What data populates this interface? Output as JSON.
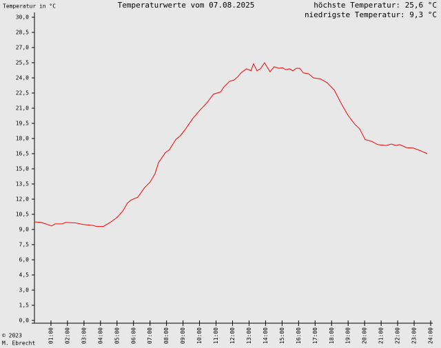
{
  "chart_data": {
    "type": "line",
    "title": "Temperaturwerte vom 07.08.2025",
    "y_label": "Temperatur in °C",
    "annotations": [
      "höchste Temperatur: 25,6 °C",
      "niedrigste Temperatur: 9,3 °C"
    ],
    "footer": [
      "© 2023",
      "M. Ebrecht"
    ],
    "x": [
      0,
      0.42,
      1.04,
      1.25,
      1.67,
      1.88,
      2.5,
      2.92,
      3.55,
      3.76,
      4.17,
      4.59,
      5.01,
      5.34,
      5.63,
      5.84,
      6.26,
      6.68,
      7.01,
      7.3,
      7.51,
      7.93,
      8.18,
      8.56,
      8.85,
      9.18,
      9.6,
      10.02,
      10.43,
      10.85,
      11.27,
      11.48,
      11.81,
      12.1,
      12.31,
      12.52,
      12.85,
      13.11,
      13.27,
      13.48,
      13.69,
      13.94,
      14.27,
      14.52,
      14.82,
      15.03,
      15.23,
      15.44,
      15.65,
      15.86,
      16.07,
      16.28,
      16.61,
      16.9,
      17.32,
      17.74,
      18.16,
      18.57,
      18.99,
      19.41,
      19.7,
      20.03,
      20.45,
      20.79,
      21.29,
      21.62,
      21.91,
      22.12,
      22.54,
      22.95,
      23.37,
      23.79
    ],
    "series": [
      {
        "color": "#ff0000",
        "values": [
          9.75,
          9.7,
          9.35,
          9.55,
          9.55,
          9.7,
          9.65,
          9.5,
          9.4,
          9.3,
          9.3,
          9.7,
          10.2,
          10.8,
          11.6,
          11.9,
          12.2,
          13.15,
          13.7,
          14.5,
          15.6,
          16.6,
          16.9,
          17.9,
          18.3,
          19.0,
          20.0,
          20.8,
          21.5,
          22.4,
          22.6,
          23.1,
          23.65,
          23.8,
          24.1,
          24.5,
          24.9,
          24.7,
          25.4,
          24.7,
          24.9,
          25.5,
          24.6,
          25.1,
          24.95,
          25.0,
          24.8,
          24.9,
          24.7,
          24.95,
          24.95,
          24.5,
          24.4,
          24.0,
          23.9,
          23.5,
          22.8,
          21.5,
          20.3,
          19.4,
          18.95,
          17.9,
          17.7,
          17.4,
          17.3,
          17.45,
          17.3,
          17.4,
          17.1,
          17.05,
          16.8,
          16.5
        ]
      }
    ],
    "xlim": [
      0,
      24
    ],
    "xticks": [
      {
        "value": 1,
        "label": "01:00"
      },
      {
        "value": 2,
        "label": "02:00"
      },
      {
        "value": 3,
        "label": "03:00"
      },
      {
        "value": 4,
        "label": "04:00"
      },
      {
        "value": 5,
        "label": "05:00"
      },
      {
        "value": 6,
        "label": "06:00"
      },
      {
        "value": 7,
        "label": "07:00"
      },
      {
        "value": 8,
        "label": "08:00"
      },
      {
        "value": 9,
        "label": "09:00"
      },
      {
        "value": 10,
        "label": "10:00"
      },
      {
        "value": 11,
        "label": "11:00"
      },
      {
        "value": 12,
        "label": "12:00"
      },
      {
        "value": 13,
        "label": "13:00"
      },
      {
        "value": 14,
        "label": "14:00"
      },
      {
        "value": 15,
        "label": "15:00"
      },
      {
        "value": 16,
        "label": "16:00"
      },
      {
        "value": 17,
        "label": "17:00"
      },
      {
        "value": 18,
        "label": "18:00"
      },
      {
        "value": 19,
        "label": "19:00"
      },
      {
        "value": 20,
        "label": "20:00"
      },
      {
        "value": 21,
        "label": "21:00"
      },
      {
        "value": 22,
        "label": "22:00"
      },
      {
        "value": 23,
        "label": "23:00"
      },
      {
        "value": 24,
        "label": "24:00"
      }
    ],
    "ylim": [
      0,
      30
    ],
    "yticks": [
      {
        "value": 0,
        "label": "0,0"
      },
      {
        "value": 1.5,
        "label": "1,5"
      },
      {
        "value": 3,
        "label": "3,0"
      },
      {
        "value": 4.5,
        "label": "4,5"
      },
      {
        "value": 6,
        "label": "6,0"
      },
      {
        "value": 7.5,
        "label": "7,5"
      },
      {
        "value": 9,
        "label": "9,0"
      },
      {
        "value": 10.5,
        "label": "10,5"
      },
      {
        "value": 12,
        "label": "12,0"
      },
      {
        "value": 13.5,
        "label": "13,5"
      },
      {
        "value": 15,
        "label": "15,0"
      },
      {
        "value": 16.5,
        "label": "16,5"
      },
      {
        "value": 18,
        "label": "18,0"
      },
      {
        "value": 19.5,
        "label": "19,5"
      },
      {
        "value": 21,
        "label": "21,0"
      },
      {
        "value": 22.5,
        "label": "22,5"
      },
      {
        "value": 24,
        "label": "24,0"
      },
      {
        "value": 25.5,
        "label": "25,5"
      },
      {
        "value": 27,
        "label": "27,0"
      },
      {
        "value": 28.5,
        "label": "28,5"
      },
      {
        "value": 30,
        "label": "30,0"
      }
    ],
    "grid": false
  }
}
